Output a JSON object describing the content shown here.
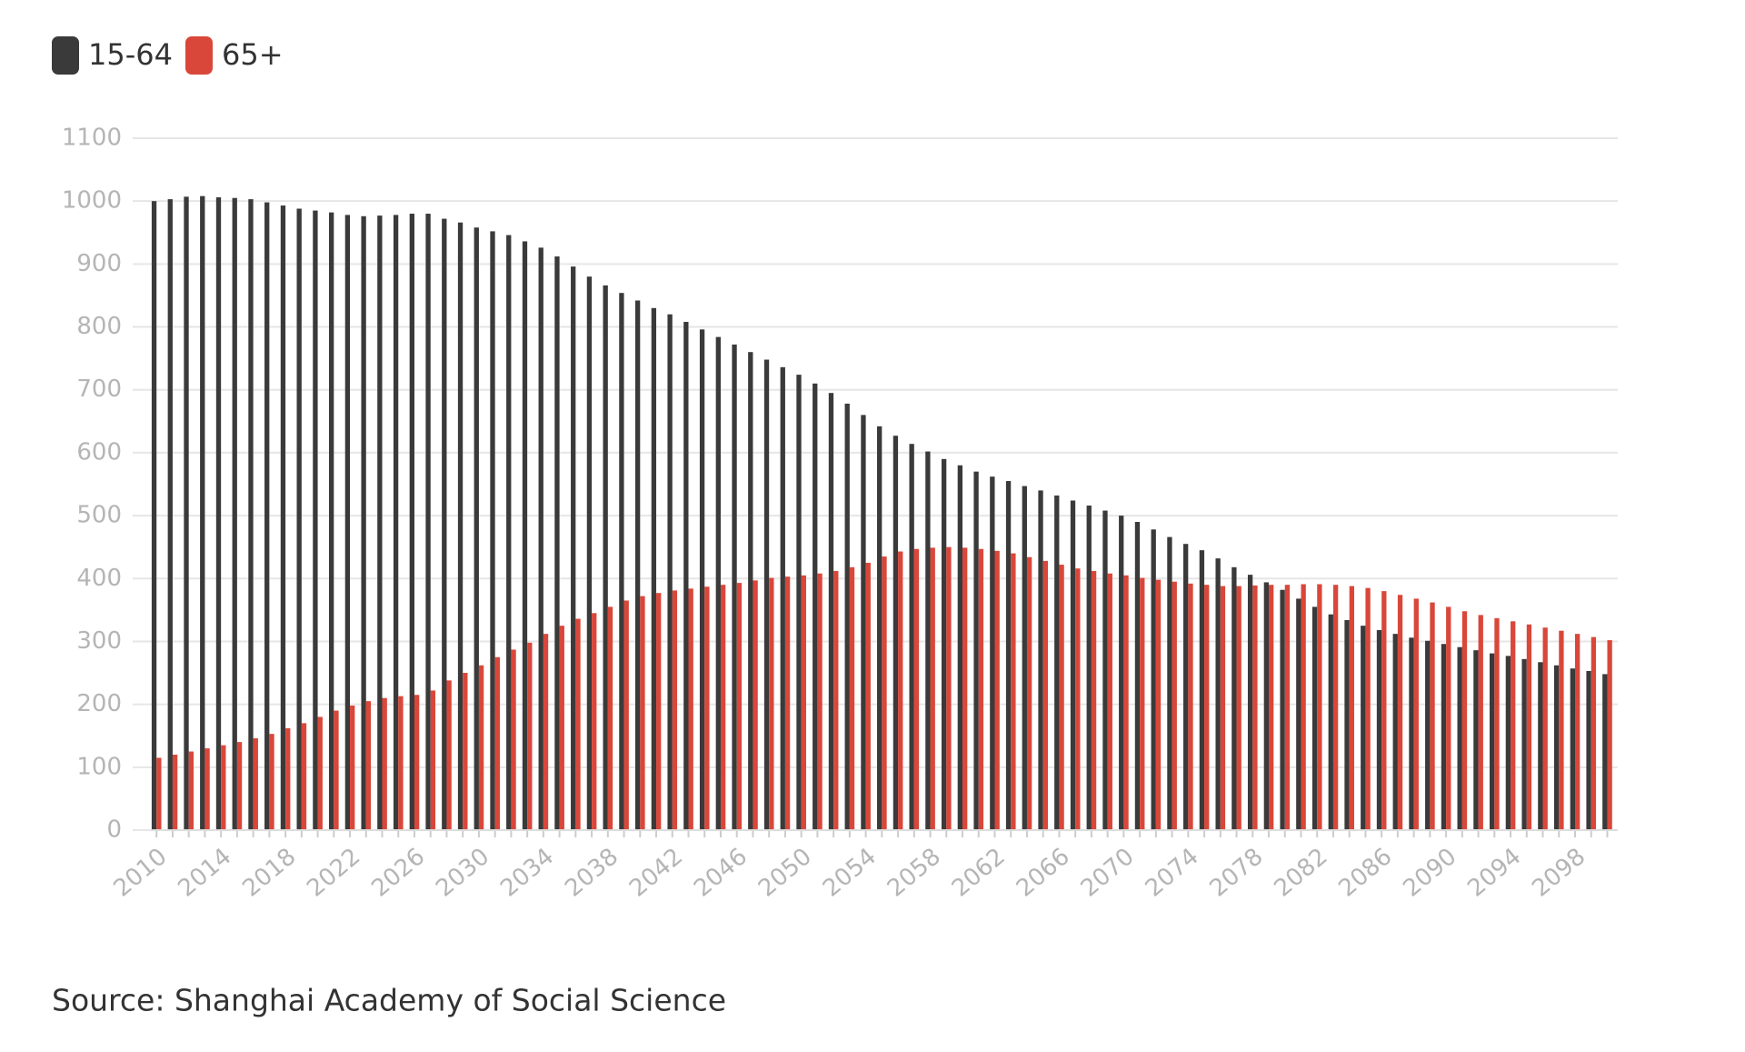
{
  "chart_data": {
    "type": "bar",
    "categories": [
      2010,
      null,
      null,
      null,
      2014,
      null,
      null,
      null,
      2018,
      null,
      null,
      null,
      2022,
      null,
      null,
      null,
      2026,
      null,
      null,
      null,
      2030,
      null,
      null,
      null,
      2034,
      null,
      null,
      null,
      2038,
      null,
      null,
      null,
      2042,
      null,
      null,
      null,
      2046,
      null,
      null,
      null,
      2050,
      null,
      null,
      null,
      2054,
      null,
      null,
      null,
      2058,
      null,
      null,
      null,
      2062,
      null,
      null,
      null,
      2066,
      null,
      null,
      null,
      2070,
      null,
      null,
      null,
      2074,
      null,
      null,
      null,
      2078,
      null,
      null,
      null,
      2082,
      null,
      null,
      null,
      2086,
      null,
      null,
      null,
      2090,
      null,
      null,
      null,
      2094,
      null,
      null,
      null,
      2098,
      null,
      null
    ],
    "series": [
      {
        "name": "15-64",
        "color": "#3a3a3a",
        "values": [
          1000,
          1003,
          1007,
          1008,
          1006,
          1005,
          1003,
          998,
          993,
          988,
          985,
          982,
          978,
          976,
          977,
          978,
          980,
          980,
          972,
          966,
          958,
          952,
          946,
          936,
          926,
          912,
          896,
          880,
          866,
          854,
          842,
          830,
          820,
          808,
          796,
          784,
          772,
          760,
          748,
          736,
          724,
          710,
          695,
          678,
          660,
          642,
          627,
          614,
          602,
          590,
          580,
          570,
          562,
          555,
          547,
          540,
          532,
          524,
          516,
          508,
          500,
          490,
          478,
          466,
          455,
          445,
          432,
          418,
          406,
          394,
          382,
          368,
          355,
          343,
          334,
          325,
          318,
          312,
          306,
          301,
          296,
          291,
          286,
          281,
          277,
          272,
          267,
          262,
          257,
          253,
          248
        ]
      },
      {
        "name": "65+",
        "color": "#d9473a",
        "values": [
          115,
          120,
          125,
          130,
          135,
          140,
          146,
          153,
          162,
          170,
          180,
          190,
          198,
          205,
          210,
          213,
          215,
          222,
          238,
          250,
          262,
          275,
          287,
          298,
          312,
          325,
          336,
          345,
          355,
          365,
          372,
          377,
          381,
          384,
          387,
          390,
          393,
          397,
          401,
          403,
          405,
          408,
          412,
          418,
          425,
          435,
          443,
          447,
          449,
          450,
          449,
          447,
          444,
          440,
          434,
          428,
          422,
          416,
          412,
          408,
          405,
          401,
          398,
          395,
          392,
          390,
          388,
          388,
          389,
          390,
          390,
          391,
          391,
          390,
          388,
          385,
          380,
          374,
          368,
          362,
          355,
          348,
          342,
          337,
          332,
          327,
          322,
          317,
          312,
          307,
          302
        ]
      }
    ],
    "ylim": [
      0,
      1100
    ],
    "yticks": [
      0,
      100,
      200,
      300,
      400,
      500,
      600,
      700,
      800,
      900,
      1000,
      1100
    ],
    "grid": true,
    "legend": "top-left",
    "source": "Source: Shanghai Academy of Social Science"
  }
}
